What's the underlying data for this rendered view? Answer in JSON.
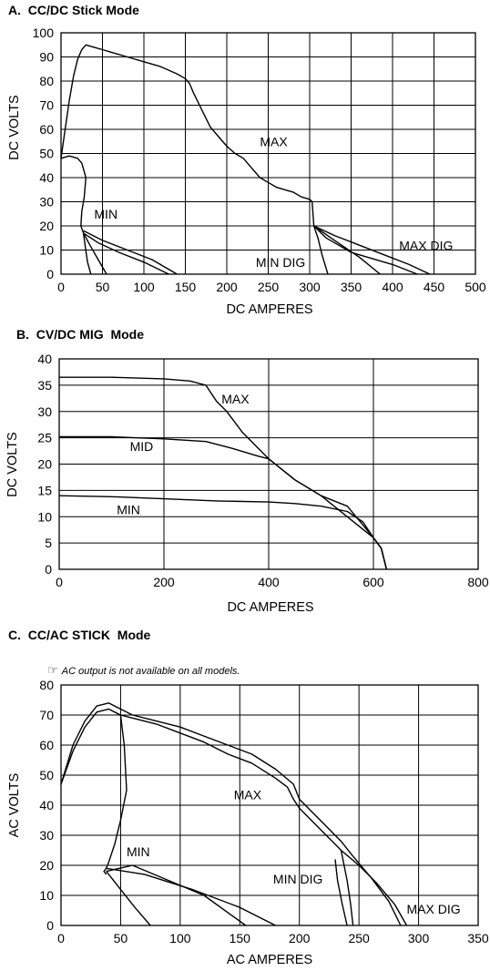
{
  "panels": [
    {
      "title": "A.  CC/DC Stick Mode",
      "note": "",
      "chart_data": {
        "type": "line",
        "xlabel": "DC AMPERES",
        "ylabel": "DC VOLTS",
        "xlim": [
          0,
          500
        ],
        "ylim": [
          0,
          100
        ],
        "xticks": [
          "0",
          "50",
          "100",
          "150",
          "200",
          "250",
          "300",
          "350",
          "400",
          "450",
          "500"
        ],
        "yticks": [
          "0",
          "10",
          "20",
          "30",
          "40",
          "50",
          "60",
          "70",
          "80",
          "90",
          "100"
        ],
        "grid": true,
        "series": [
          {
            "name": "MAX",
            "x": [
              0,
              5,
              10,
              15,
              20,
              25,
              30,
              40,
              50,
              60,
              80,
              100,
              120,
              140,
              150,
              155,
              160,
              170,
              180,
              190,
              200,
              210,
              220,
              230,
              240,
              250,
              260,
              270,
              280,
              290,
              300,
              303,
              305
            ],
            "y": [
              48,
              60,
              72,
              82,
              89,
              93,
              95,
              94,
              93,
              92,
              90,
              88,
              86,
              83,
              81,
              79,
              75,
              68,
              61,
              57,
              53,
              50,
              48,
              44,
              40,
              38,
              36,
              35,
              34,
              32,
              31,
              30,
              20
            ]
          },
          {
            "name": "MAX DIG",
            "x": [
              305,
              330,
              360,
              390,
              420,
              445
            ],
            "y": [
              20,
              16,
              12,
              8,
              4,
              0
            ]
          },
          {
            "name": "MAX DIG",
            "x": [
              305,
              320,
              335,
              350,
              370,
              400,
              430
            ],
            "y": [
              20,
              15,
              12,
              9,
              7,
              4,
              0
            ]
          },
          {
            "name": "MIN",
            "x": [
              0,
              10,
              20,
              25,
              30,
              28,
              25,
              24,
              27
            ],
            "y": [
              48,
              49,
              48,
              46,
              40,
              32,
              26,
              20,
              17
            ]
          },
          {
            "name": "MIN",
            "x": [
              27,
              29,
              32,
              36
            ],
            "y": [
              17,
              12,
              5,
              0
            ]
          },
          {
            "name": "MIN DIG",
            "x": [
              27,
              50,
              80,
              110,
              140
            ],
            "y": [
              18,
              14,
              10,
              6,
              0
            ]
          },
          {
            "name": "",
            "x": [
              27,
              45,
              70,
              100,
              130
            ],
            "y": [
              17,
              13,
              9,
              5,
              0
            ]
          },
          {
            "name": "",
            "x": [
              27,
              35,
              45,
              55
            ],
            "y": [
              17,
              12,
              6,
              0
            ]
          },
          {
            "name": "",
            "x": [
              305,
              310,
              315,
              322
            ],
            "y": [
              20,
              15,
              8,
              0
            ]
          },
          {
            "name": "",
            "x": [
              305,
              330,
              360,
              385
            ],
            "y": [
              20,
              14,
              7,
              0
            ]
          }
        ]
      },
      "labels": [
        {
          "text": "MAX",
          "x": 240,
          "y": 53
        },
        {
          "text": "MIN",
          "x": 40,
          "y": 23
        },
        {
          "text": "MIN DIG",
          "x": 235,
          "y": 3
        },
        {
          "text": "MAX DIG",
          "x": 408,
          "y": 10
        }
      ]
    },
    {
      "title": "B.  CV/DC MIG  Mode",
      "note": "",
      "chart_data": {
        "type": "line",
        "xlabel": "DC AMPERES",
        "ylabel": "DC VOLTS",
        "xlim": [
          0,
          800
        ],
        "ylim": [
          0,
          40
        ],
        "xticks": [
          "0",
          "200",
          "400",
          "600",
          "800"
        ],
        "yticks": [
          "0",
          "5",
          "10",
          "15",
          "20",
          "25",
          "30",
          "35",
          "40"
        ],
        "grid": true,
        "series": [
          {
            "name": "MAX",
            "x": [
              0,
              100,
              200,
              250,
              280,
              300,
              320,
              350,
              400,
              450,
              500,
              550,
              600,
              615,
              625
            ],
            "y": [
              36.5,
              36.5,
              36.2,
              35.8,
              35,
              32,
              30,
              26,
              21,
              17,
              14,
              10,
              6,
              4,
              0
            ]
          },
          {
            "name": "MID",
            "x": [
              0,
              100,
              200,
              280,
              330,
              380,
              400,
              450,
              500,
              550,
              600,
              615,
              625
            ],
            "y": [
              25.2,
              25.2,
              24.8,
              24.3,
              23,
              21.5,
              21,
              17,
              14,
              12,
              6,
              4,
              0
            ]
          },
          {
            "name": "MIN",
            "x": [
              0,
              100,
              200,
              300,
              400,
              450,
              500,
              550,
              580,
              600,
              615,
              625
            ],
            "y": [
              14,
              13.8,
              13.4,
              13,
              12.8,
              12.5,
              12,
              11,
              9,
              6,
              4,
              0
            ]
          }
        ]
      },
      "labels": [
        {
          "text": "MAX",
          "x": 310,
          "y": 31.5
        },
        {
          "text": "MID",
          "x": 135,
          "y": 22.5
        },
        {
          "text": "MIN",
          "x": 110,
          "y": 10.5
        }
      ]
    },
    {
      "title": "C.  CC/AC STICK  Mode",
      "note": "AC output is not available on all models.",
      "note_icon": "pointing-hand-icon",
      "chart_data": {
        "type": "line",
        "xlabel": "AC AMPERES",
        "ylabel": "AC VOLTS",
        "xlim": [
          0,
          350
        ],
        "ylim": [
          0,
          80
        ],
        "xticks": [
          "0",
          "50",
          "100",
          "150",
          "200",
          "250",
          "300",
          "350"
        ],
        "yticks": [
          "0",
          "10",
          "20",
          "30",
          "40",
          "50",
          "60",
          "70",
          "80"
        ],
        "grid": true,
        "series": [
          {
            "name": "MAX",
            "x": [
              0,
              10,
              20,
              30,
              40,
              50,
              60,
              80,
              100,
              120,
              140,
              160,
              180,
              190,
              195,
              200,
              210,
              220,
              230,
              235
            ],
            "y": [
              47,
              58,
              66,
              71,
              72,
              70,
              69,
              67,
              64,
              61,
              57,
              54,
              49,
              46,
              42,
              39,
              35,
              31,
              27,
              25
            ]
          },
          {
            "name": "MAX DIG",
            "x": [
              235,
              250,
              265,
              280,
              290
            ],
            "y": [
              25,
              20,
              14,
              7,
              0
            ]
          },
          {
            "name": "",
            "x": [
              0,
              10,
              20,
              30,
              40,
              50,
              60,
              80,
              100,
              120,
              140,
              160,
              180,
              195,
              200,
              210,
              220,
              235,
              245
            ],
            "y": [
              47,
              60,
              68,
              73,
              74,
              72,
              70,
              68,
              66,
              63,
              60,
              57,
              52,
              47,
              42,
              38,
              34,
              28,
              23
            ]
          },
          {
            "name": "",
            "x": [
              245,
              260,
              275,
              285
            ],
            "y": [
              23,
              16,
              8,
              0
            ]
          },
          {
            "name": "MIN",
            "x": [
              50,
              53,
              55,
              50,
              45,
              40,
              38,
              36,
              38
            ],
            "y": [
              70,
              60,
              45,
              35,
              27,
              21,
              19,
              18,
              17
            ]
          },
          {
            "name": "MIN DIG",
            "x": [
              38,
              60,
              90,
              120,
              155
            ],
            "y": [
              18,
              20,
              15,
              10,
              0
            ]
          },
          {
            "name": "",
            "x": [
              38,
              70,
              110,
              150,
              180
            ],
            "y": [
              19,
              17,
              12,
              6,
              0
            ]
          },
          {
            "name": "",
            "x": [
              38,
              50,
              62,
              75
            ],
            "y": [
              18,
              12,
              6,
              0
            ]
          },
          {
            "name": "",
            "x": [
              230,
              232,
              236,
              240
            ],
            "y": [
              22,
              15,
              7,
              0
            ]
          },
          {
            "name": "",
            "x": [
              235,
              240,
              243,
              245
            ],
            "y": [
              25,
              15,
              7,
              0
            ]
          }
        ]
      },
      "labels": [
        {
          "text": "MAX",
          "x": 145,
          "y": 42
        },
        {
          "text": "MIN",
          "x": 55,
          "y": 23
        },
        {
          "text": "MIN DIG",
          "x": 178,
          "y": 14
        },
        {
          "text": "MAX DIG",
          "x": 290,
          "y": 4
        }
      ]
    }
  ]
}
